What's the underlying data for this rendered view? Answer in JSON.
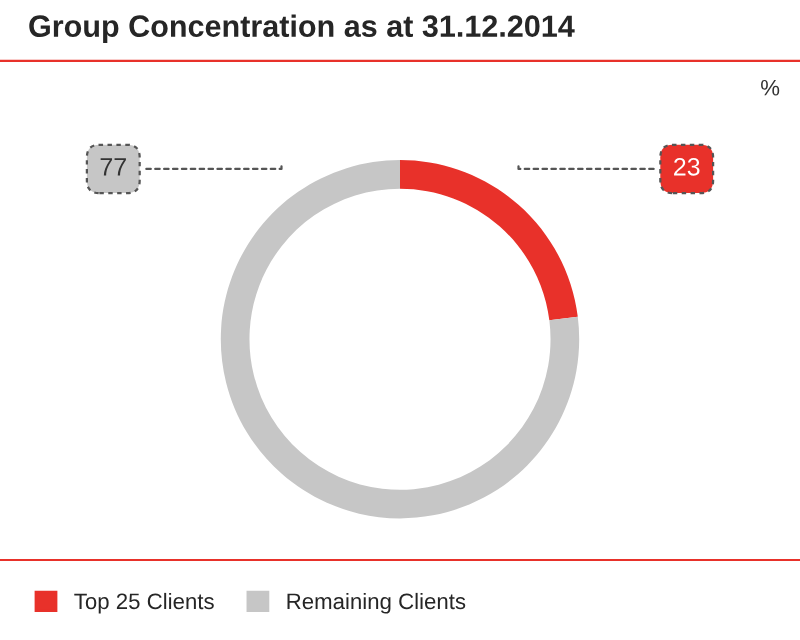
{
  "chart_data": {
    "type": "donut",
    "title": "Group Concentration as at 31.12.2014",
    "categories": [
      "Top 25 Clients",
      "Remaining Clients"
    ],
    "values": [
      23,
      77
    ],
    "colors": [
      "#e8312a",
      "#c6c6c6"
    ],
    "data_labels": true,
    "legend": "bottom left",
    "annotations": [
      "%"
    ]
  }
}
